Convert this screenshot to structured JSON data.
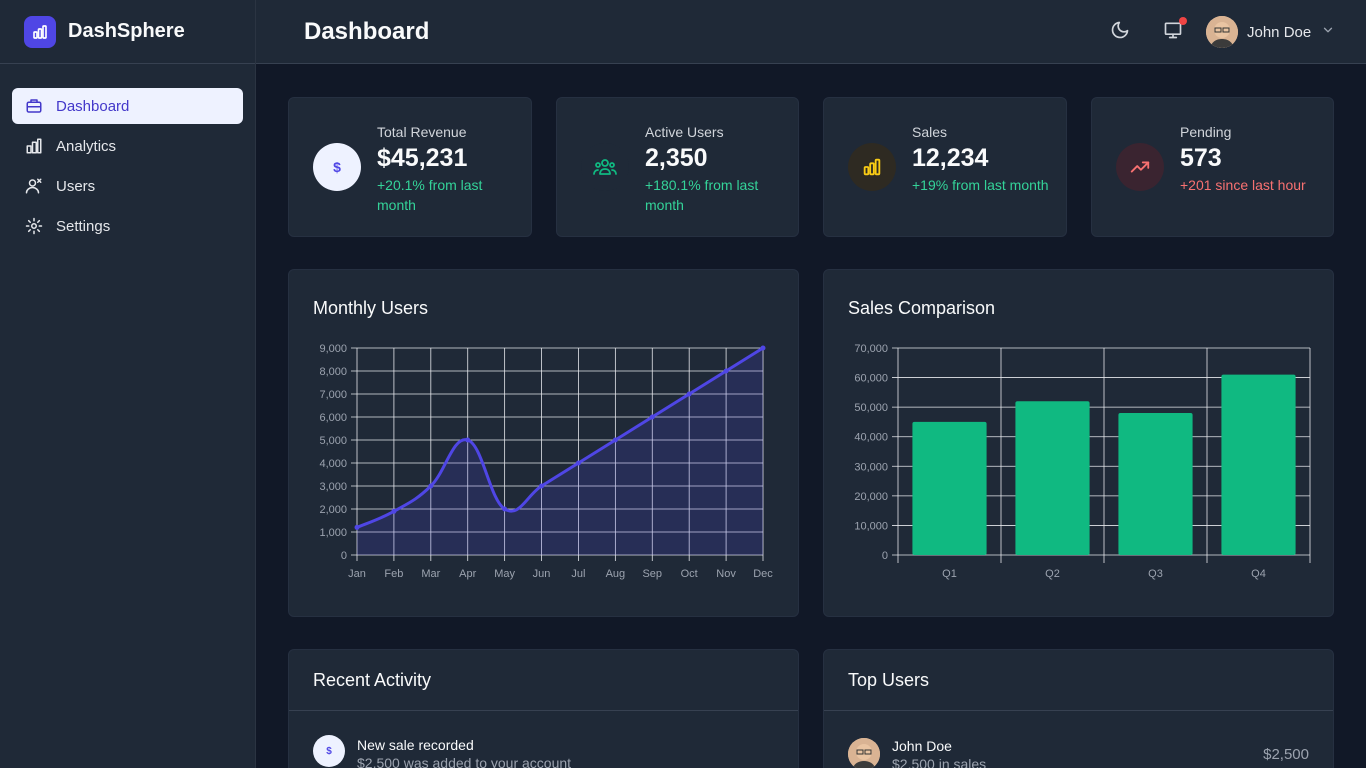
{
  "app": {
    "name": "DashSphere"
  },
  "header": {
    "title": "Dashboard",
    "user_name": "John Doe"
  },
  "sidebar": {
    "items": [
      {
        "label": "Dashboard",
        "icon": "briefcase-icon",
        "active": true
      },
      {
        "label": "Analytics",
        "icon": "bar-chart-icon",
        "active": false
      },
      {
        "label": "Users",
        "icon": "users-icon",
        "active": false
      },
      {
        "label": "Settings",
        "icon": "gear-icon",
        "active": false
      }
    ]
  },
  "stats": [
    {
      "label": "Total Revenue",
      "value": "$45,231",
      "change": "+20.1% from last month",
      "trend": "positive",
      "icon": "dollar-icon"
    },
    {
      "label": "Active Users",
      "value": "2,350",
      "change": "+180.1% from last month",
      "trend": "positive",
      "icon": "users-icon"
    },
    {
      "label": "Sales",
      "value": "12,234",
      "change": "+19% from last month",
      "trend": "positive",
      "icon": "bar-chart-icon"
    },
    {
      "label": "Pending",
      "value": "573",
      "change": "+201 since last hour",
      "trend": "negative",
      "icon": "trending-up-icon"
    }
  ],
  "charts": {
    "monthly_title": "Monthly Users",
    "sales_title": "Sales Comparison"
  },
  "chart_data": [
    {
      "type": "area",
      "title": "Monthly Users",
      "categories": [
        "Jan",
        "Feb",
        "Mar",
        "Apr",
        "May",
        "Jun",
        "Jul",
        "Aug",
        "Sep",
        "Oct",
        "Nov",
        "Dec"
      ],
      "values": [
        1200,
        1900,
        3000,
        5000,
        2000,
        3000,
        4000,
        5000,
        6000,
        7000,
        8000,
        9000
      ],
      "ylim": [
        0,
        9000
      ],
      "yticks": [
        "0",
        "1,000",
        "2,000",
        "3,000",
        "4,000",
        "5,000",
        "6,000",
        "7,000",
        "8,000",
        "9,000"
      ],
      "grid": true,
      "color": "#4f46e5"
    },
    {
      "type": "bar",
      "title": "Sales Comparison",
      "categories": [
        "Q1",
        "Q2",
        "Q3",
        "Q4"
      ],
      "values": [
        45000,
        52000,
        48000,
        61000
      ],
      "ylim": [
        0,
        70000
      ],
      "yticks": [
        "0",
        "10,000",
        "20,000",
        "30,000",
        "40,000",
        "50,000",
        "60,000",
        "70,000"
      ],
      "grid": true,
      "color": "#10b981"
    }
  ],
  "recent_activity": {
    "title": "Recent Activity",
    "items": [
      {
        "title": "New sale recorded",
        "subtitle": "$2,500 was added to your account",
        "icon": "dollar-icon"
      }
    ]
  },
  "top_users": {
    "title": "Top Users",
    "items": [
      {
        "name": "John Doe",
        "subtitle": "$2,500 in sales",
        "amount": "$2,500"
      }
    ]
  },
  "colors": {
    "accent": "#4f46e5",
    "positive": "#34d399",
    "negative": "#f87171",
    "bar": "#10b981"
  }
}
